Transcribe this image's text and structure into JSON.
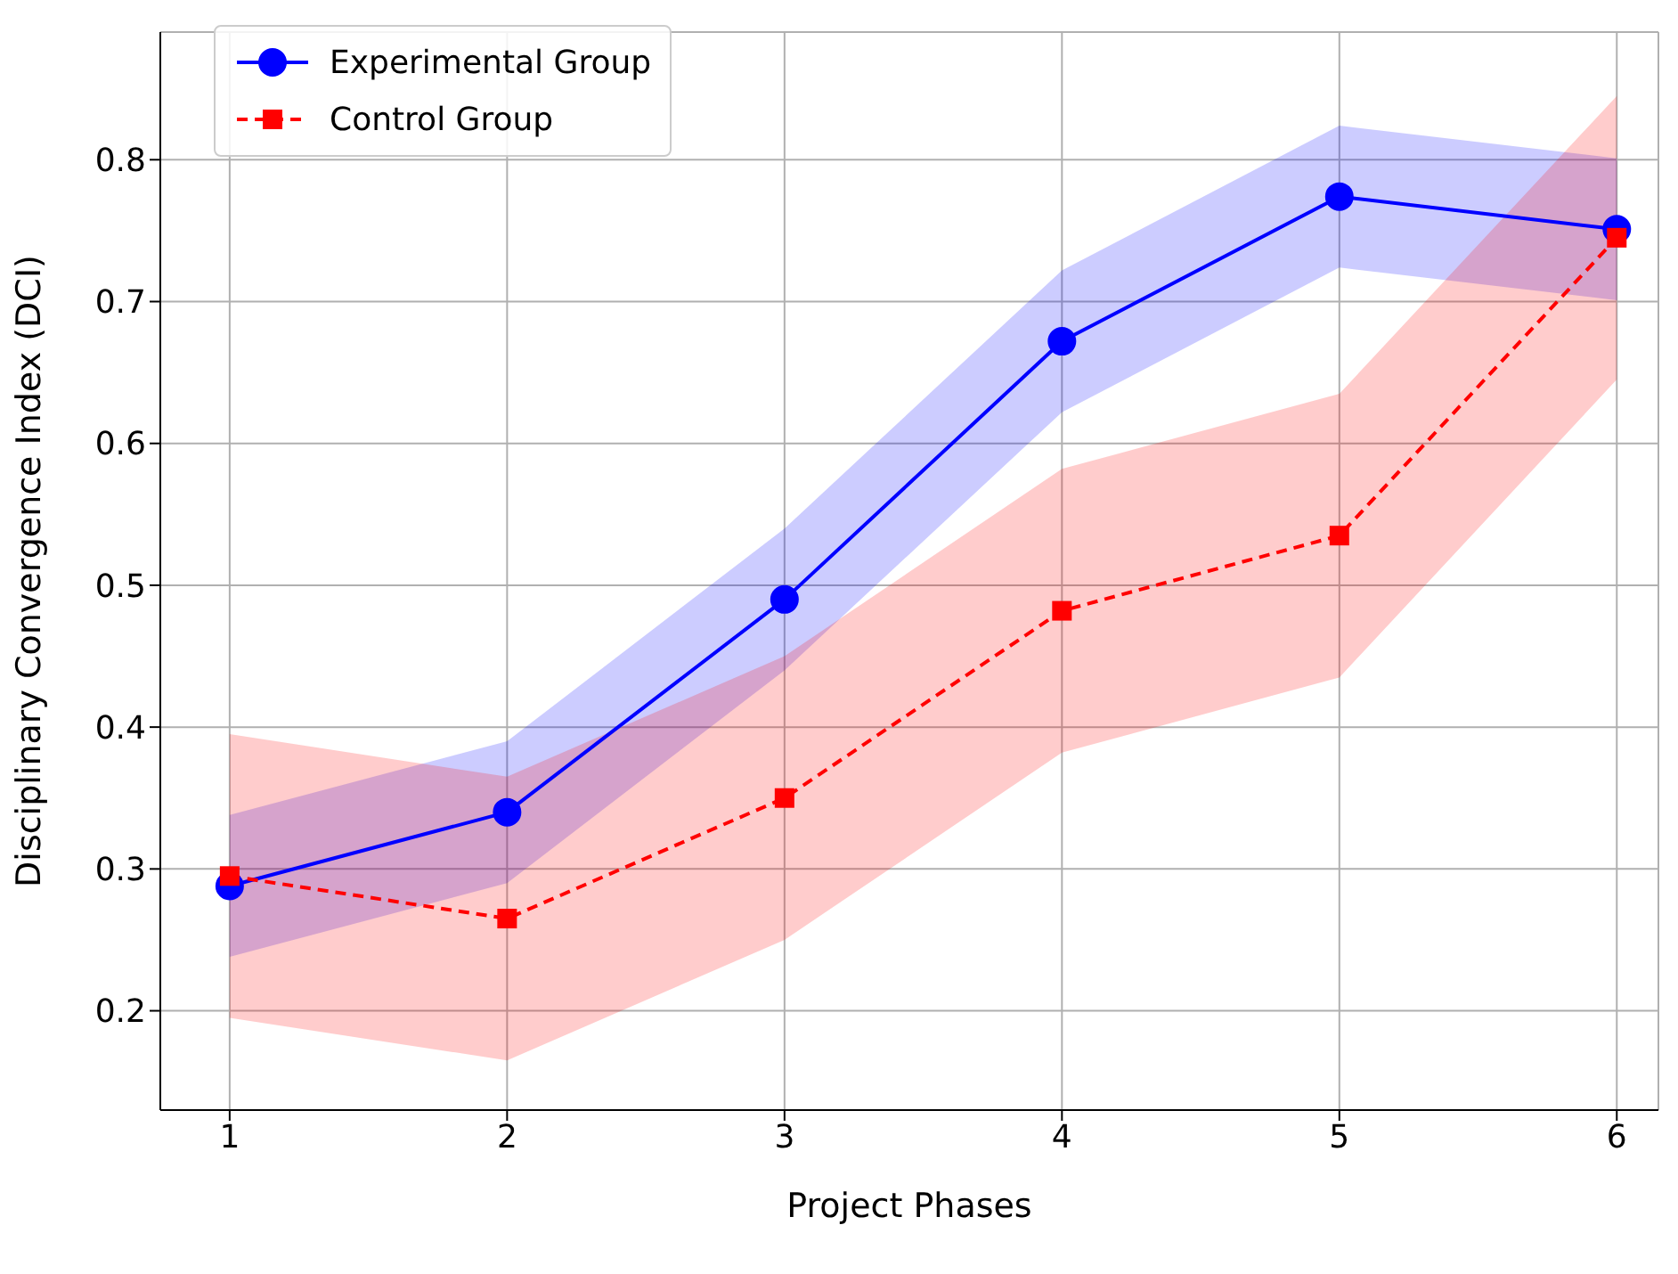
{
  "chart_data": {
    "type": "line",
    "xlabel": "Project Phases",
    "ylabel": "Disciplinary Convergence Index (DCI)",
    "x": [
      1,
      2,
      3,
      4,
      5,
      6
    ],
    "series": [
      {
        "name": "Experimental Group",
        "color": "#0000ff",
        "values": [
          0.288,
          0.34,
          0.49,
          0.672,
          0.774,
          0.751
        ],
        "lower": [
          0.238,
          0.29,
          0.44,
          0.622,
          0.724,
          0.701
        ],
        "upper": [
          0.338,
          0.39,
          0.54,
          0.722,
          0.824,
          0.801
        ],
        "marker": "circle",
        "line_style": "solid"
      },
      {
        "name": "Control Group",
        "color": "#ff0000",
        "values": [
          0.295,
          0.265,
          0.35,
          0.482,
          0.535,
          0.745
        ],
        "lower": [
          0.195,
          0.165,
          0.25,
          0.382,
          0.435,
          0.645
        ],
        "upper": [
          0.395,
          0.365,
          0.45,
          0.582,
          0.635,
          0.845
        ],
        "marker": "square",
        "line_style": "dashed"
      }
    ],
    "xlim": [
      0.75,
      6.15
    ],
    "xticks": [
      1,
      2,
      3,
      4,
      5,
      6
    ],
    "ylim": [
      0.13,
      0.89
    ],
    "yticks": [
      0.2,
      0.3,
      0.4,
      0.5,
      0.6,
      0.7,
      0.8
    ],
    "grid": true,
    "legend": "top left"
  }
}
